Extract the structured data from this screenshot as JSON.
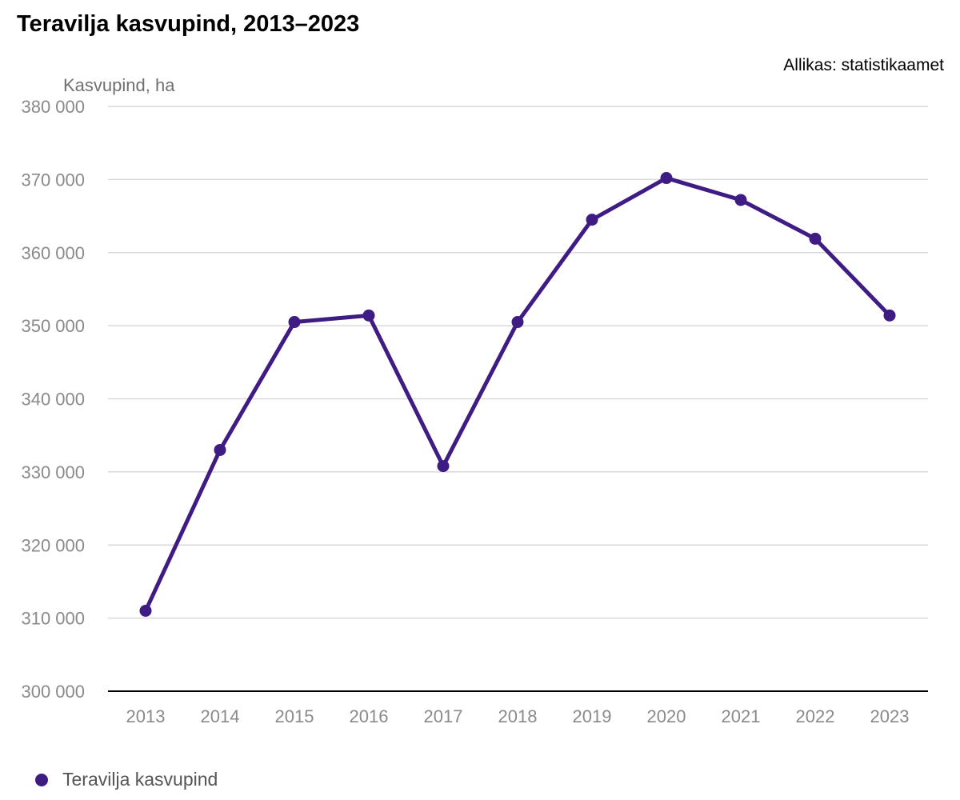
{
  "chart_data": {
    "type": "line",
    "title": "Teravilja kasvupind, 2013–2023",
    "source": "Allikas: statistikaamet",
    "xlabel": "",
    "ylabel": "Kasvupind, ha",
    "ylim": [
      300000,
      380000
    ],
    "yticks": [
      300000,
      310000,
      320000,
      330000,
      340000,
      350000,
      360000,
      370000,
      380000
    ],
    "ytick_labels": [
      "300 000",
      "310 000",
      "320 000",
      "330 000",
      "340 000",
      "350 000",
      "360 000",
      "370 000",
      "380 000"
    ],
    "categories": [
      "2013",
      "2014",
      "2015",
      "2016",
      "2017",
      "2018",
      "2019",
      "2020",
      "2021",
      "2022",
      "2023"
    ],
    "grid": true,
    "legend_position": "bottom-left",
    "series": [
      {
        "name": "Teravilja kasvupind",
        "color": "#3f1c84",
        "values": [
          311000,
          333000,
          350500,
          351400,
          330800,
          350500,
          364500,
          370200,
          367200,
          361900,
          351400
        ]
      }
    ]
  }
}
